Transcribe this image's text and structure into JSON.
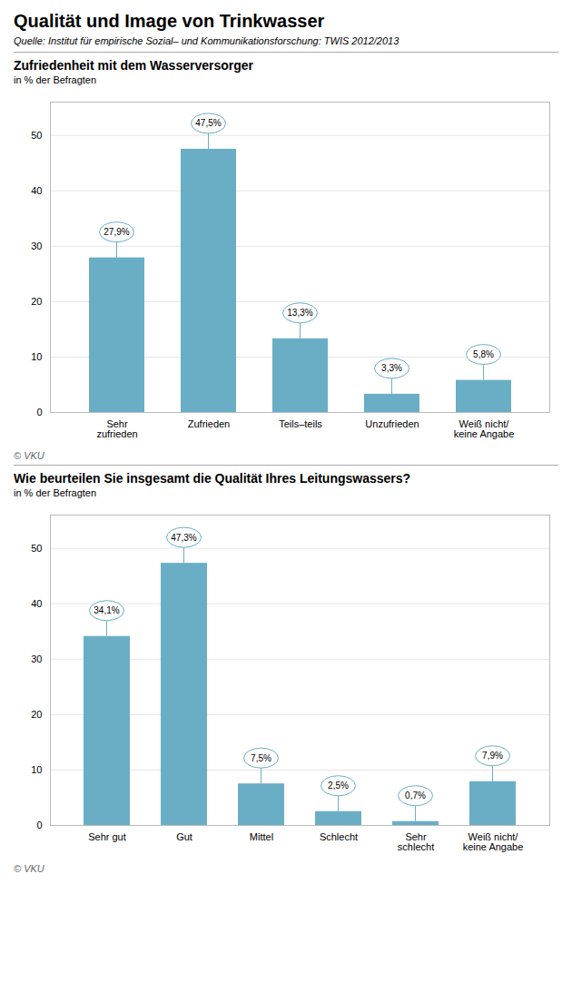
{
  "title": "Qualität und Image von Trinkwasser",
  "subtitle": "Quelle: Institut für empirische Sozial– und Kommunikationsforschung: TWIS 2012/2013",
  "chart_data": [
    {
      "type": "bar",
      "title": "Zufriedenheit mit dem Wasserversorger",
      "subtitle": "in % der Befragten",
      "categories": [
        "Sehr\nzufrieden",
        "Zufrieden",
        "Teils–teils",
        "Unzufrieden",
        "Weiß nicht/\nkeine Angabe"
      ],
      "values": [
        27.9,
        47.5,
        13.3,
        3.3,
        5.8
      ],
      "value_labels": [
        "27,9%",
        "47,5%",
        "13,3%",
        "3,3%",
        "5,8%"
      ],
      "data_labels": true,
      "color": "#6AAEC6",
      "ylim": [
        0,
        56
      ],
      "yticks": [
        0,
        10,
        20,
        30,
        40,
        50
      ],
      "grid": true,
      "annotations": [
        "© VKU"
      ]
    },
    {
      "type": "bar",
      "title": "Wie beurteilen Sie insgesamt die Qualität Ihres Leitungswassers?",
      "subtitle": "in % der Befragten",
      "categories": [
        "Sehr gut",
        "Gut",
        "Mittel",
        "Schlecht",
        "Sehr\nschlecht",
        "Weiß nicht/\nkeine Angabe"
      ],
      "values": [
        34.1,
        47.3,
        7.5,
        2.5,
        0.7,
        7.9
      ],
      "value_labels": [
        "34,1%",
        "47,3%",
        "7,5%",
        "2,5%",
        "0,7%",
        "7,9%"
      ],
      "data_labels": true,
      "color": "#6AAEC6",
      "ylim": [
        0,
        56
      ],
      "yticks": [
        0,
        10,
        20,
        30,
        40,
        50
      ],
      "grid": true,
      "annotations": [
        "© VKU"
      ]
    }
  ]
}
